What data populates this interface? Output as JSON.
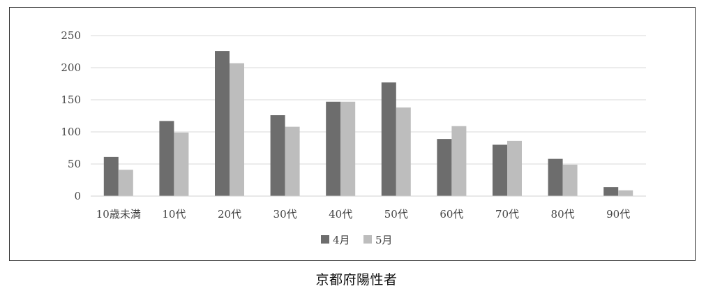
{
  "caption": "京都府陽性者",
  "chart_data": {
    "type": "bar",
    "categories": [
      "10歳未満",
      "10代",
      "20代",
      "30代",
      "40代",
      "50代",
      "60代",
      "70代",
      "80代",
      "90代"
    ],
    "series": [
      {
        "name": "4月",
        "color": "#6d6d6d",
        "values": [
          61,
          117,
          226,
          126,
          147,
          177,
          89,
          80,
          58,
          14
        ]
      },
      {
        "name": "5月",
        "color": "#bdbdbd",
        "values": [
          41,
          99,
          207,
          108,
          147,
          138,
          109,
          86,
          49,
          9
        ]
      }
    ],
    "y_ticks": [
      "0",
      "50",
      "100",
      "150",
      "200",
      "250"
    ],
    "ylim": [
      0,
      250
    ],
    "grid": true,
    "legend_position": "bottom"
  }
}
